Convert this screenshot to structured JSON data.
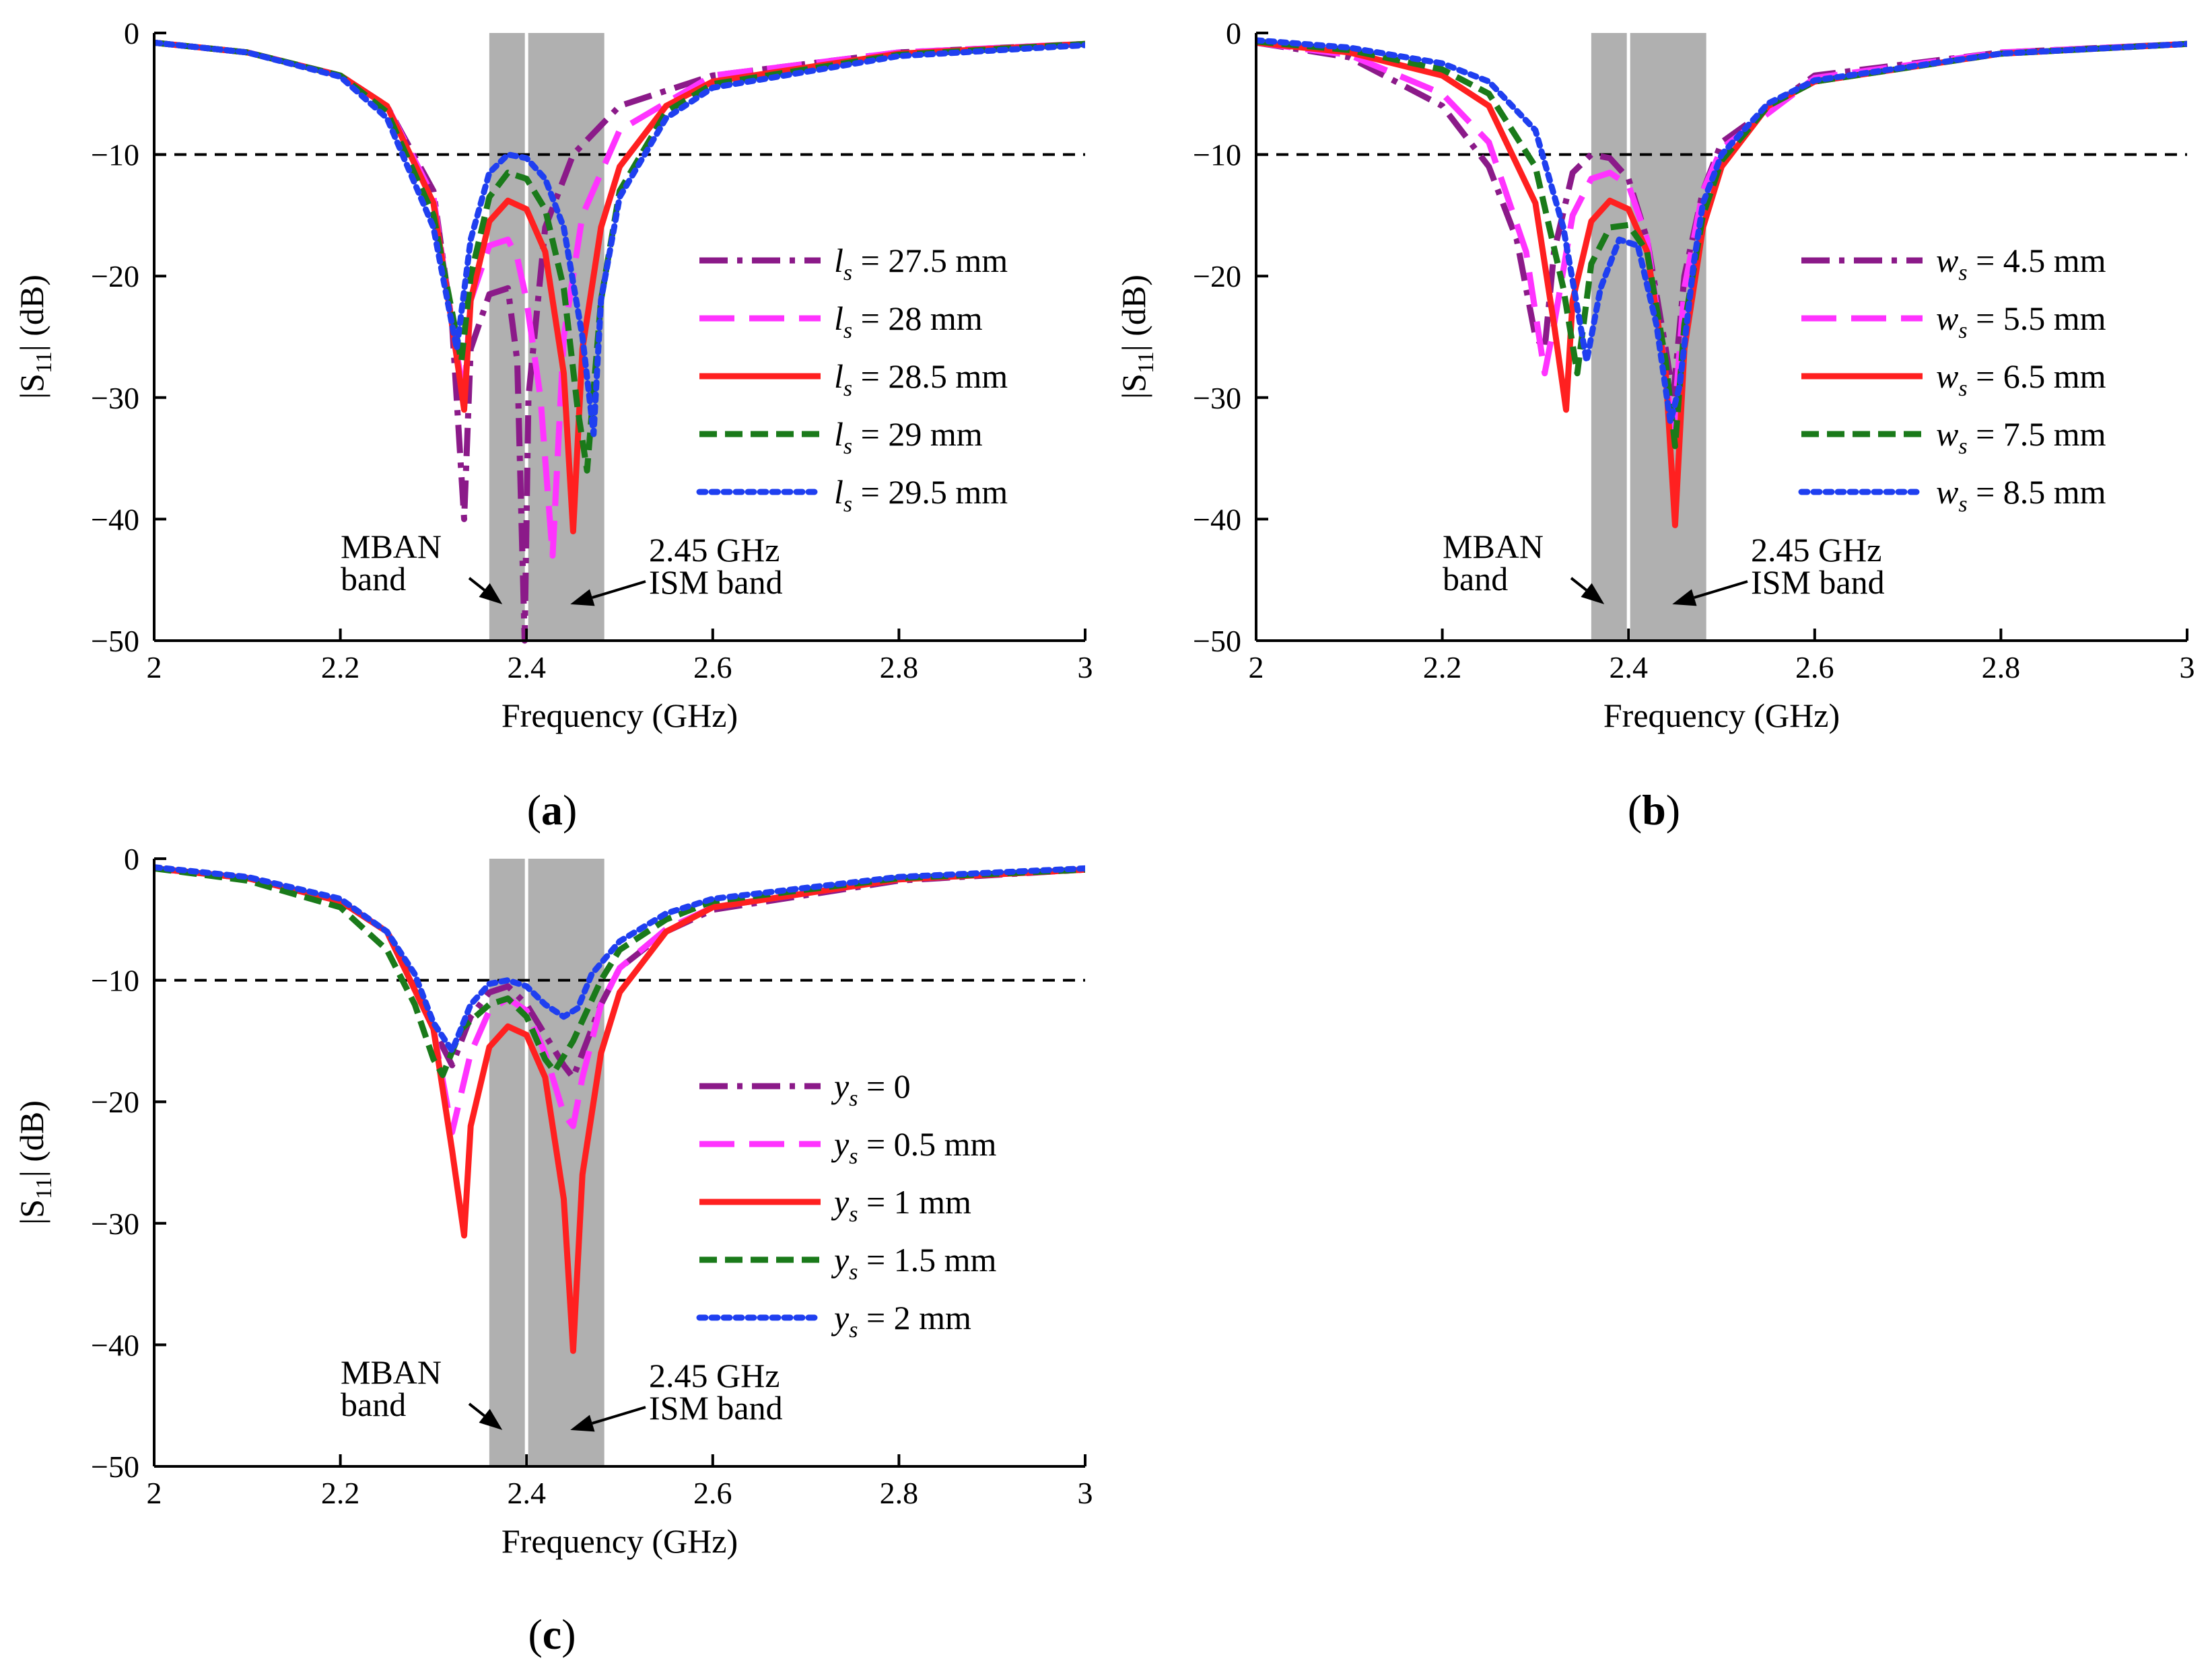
{
  "figure": {
    "panel_tag_left": "(",
    "panel_tag_right": ")",
    "colors": {
      "band_fill": "#b0b0b0",
      "band_divider": "#ffffff",
      "threshold_line": "#000000",
      "axis": "#000000",
      "series": [
        "#8b1a89",
        "#ff33ff",
        "#ff2020",
        "#1a7a1a",
        "#1f3ff0"
      ]
    },
    "line_styles": [
      "dashdot",
      "dashed",
      "solid",
      "shortdash",
      "dotted"
    ]
  },
  "chart_data": [
    {
      "type": "line",
      "panel": "a",
      "xlabel": "Frequency (GHz)",
      "ylabel_main": "|S",
      "ylabel_sub": "11",
      "ylabel_tail": "| (dB)",
      "xlim": [
        2,
        3
      ],
      "ylim": [
        -50,
        0
      ],
      "xticks": [
        2,
        2.2,
        2.4,
        2.6,
        2.8,
        3
      ],
      "xtick_labels": [
        "2",
        "2.2",
        "2.4",
        "2.6",
        "2.8",
        "3"
      ],
      "yticks": [
        0,
        -10,
        -20,
        -30,
        -40,
        -50
      ],
      "ytick_labels": [
        "0",
        "−10",
        "−20",
        "−30",
        "−40",
        "−50"
      ],
      "threshold_db": -10,
      "bands": [
        {
          "name": "MBAN",
          "from": 2.36,
          "to": 2.4
        },
        {
          "name": "ISM",
          "from": 2.4,
          "to": 2.4835
        }
      ],
      "annotations": [
        {
          "id": "mban",
          "lines": [
            "MBAN",
            "band"
          ],
          "arrow_to": [
            2.374,
            -47.0
          ]
        },
        {
          "id": "ism",
          "lines": [
            "2.45 GHz",
            "ISM band"
          ],
          "arrow_to": [
            2.447,
            -47.0
          ]
        }
      ],
      "legend_var": "l",
      "legend_sub": "s",
      "series": [
        {
          "name": "ls = 27.5 mm",
          "value_text": " = 27.5 mm",
          "x": [
            2.0,
            2.1,
            2.2,
            2.25,
            2.3,
            2.32,
            2.333,
            2.34,
            2.36,
            2.38,
            2.39,
            2.398,
            2.402,
            2.42,
            2.45,
            2.5,
            2.6,
            2.8,
            3.0
          ],
          "y": [
            -0.8,
            -1.6,
            -3.5,
            -6.0,
            -13.0,
            -24.0,
            -40.0,
            -26.0,
            -21.5,
            -21.0,
            -27.0,
            -50.0,
            -30.0,
            -16.0,
            -10.0,
            -6.0,
            -3.5,
            -1.6,
            -0.9
          ]
        },
        {
          "name": "ls = 28 mm",
          "value_text": " = 28 mm",
          "x": [
            2.0,
            2.1,
            2.2,
            2.25,
            2.3,
            2.32,
            2.333,
            2.34,
            2.36,
            2.38,
            2.39,
            2.4,
            2.415,
            2.428,
            2.44,
            2.46,
            2.5,
            2.6,
            2.8,
            3.0
          ],
          "y": [
            -0.8,
            -1.6,
            -3.5,
            -6.0,
            -13.5,
            -24.0,
            -30.0,
            -22.0,
            -17.5,
            -17.0,
            -18.5,
            -22.0,
            -30.0,
            -43.0,
            -25.0,
            -15.0,
            -8.0,
            -3.5,
            -1.6,
            -0.9
          ]
        },
        {
          "name": "ls = 28.5 mm",
          "value_text": " = 28.5 mm",
          "x": [
            2.0,
            2.1,
            2.2,
            2.25,
            2.3,
            2.32,
            2.333,
            2.34,
            2.36,
            2.38,
            2.4,
            2.42,
            2.44,
            2.45,
            2.46,
            2.48,
            2.5,
            2.55,
            2.6,
            2.8,
            3.0
          ],
          "y": [
            -0.8,
            -1.6,
            -3.5,
            -6.0,
            -14.0,
            -24.0,
            -31.0,
            -22.0,
            -15.5,
            -13.8,
            -14.5,
            -18.0,
            -28.0,
            -41.0,
            -26.0,
            -16.0,
            -11.0,
            -6.0,
            -4.0,
            -1.7,
            -0.9
          ]
        },
        {
          "name": "ls = 29 mm",
          "value_text": " = 29 mm",
          "x": [
            2.0,
            2.1,
            2.2,
            2.25,
            2.3,
            2.32,
            2.33,
            2.34,
            2.36,
            2.38,
            2.4,
            2.42,
            2.44,
            2.455,
            2.465,
            2.48,
            2.5,
            2.55,
            2.6,
            2.8,
            3.0
          ],
          "y": [
            -0.8,
            -1.6,
            -3.5,
            -6.5,
            -15.0,
            -23.0,
            -27.0,
            -20.0,
            -13.5,
            -11.5,
            -12.0,
            -14.5,
            -21.0,
            -31.0,
            -36.0,
            -22.0,
            -13.0,
            -6.5,
            -4.2,
            -1.8,
            -0.9
          ]
        },
        {
          "name": "ls = 29.5 mm",
          "value_text": " = 29.5 mm",
          "x": [
            2.0,
            2.1,
            2.2,
            2.25,
            2.3,
            2.315,
            2.325,
            2.34,
            2.36,
            2.38,
            2.4,
            2.42,
            2.44,
            2.46,
            2.472,
            2.48,
            2.5,
            2.55,
            2.6,
            2.8,
            3.0
          ],
          "y": [
            -0.8,
            -1.6,
            -3.6,
            -7.0,
            -16.0,
            -22.0,
            -26.0,
            -17.0,
            -11.5,
            -10.0,
            -10.3,
            -12.0,
            -16.0,
            -25.0,
            -33.0,
            -22.0,
            -13.5,
            -7.0,
            -4.5,
            -1.9,
            -1.0
          ]
        }
      ]
    },
    {
      "type": "line",
      "panel": "b",
      "xlabel": "Frequency (GHz)",
      "ylabel_main": "|S",
      "ylabel_sub": "11",
      "ylabel_tail": "| (dB)",
      "xlim": [
        2,
        3
      ],
      "ylim": [
        -50,
        0
      ],
      "xticks": [
        2,
        2.2,
        2.4,
        2.6,
        2.8,
        3
      ],
      "xtick_labels": [
        "2",
        "2.2",
        "2.4",
        "2.6",
        "2.8",
        "3"
      ],
      "yticks": [
        0,
        -10,
        -20,
        -30,
        -40,
        -50
      ],
      "ytick_labels": [
        "0",
        "−10",
        "−20",
        "−30",
        "−40",
        "−50"
      ],
      "threshold_db": -10,
      "bands": [
        {
          "name": "MBAN",
          "from": 2.36,
          "to": 2.4
        },
        {
          "name": "ISM",
          "from": 2.4,
          "to": 2.4835
        }
      ],
      "annotations": [
        {
          "id": "mban",
          "lines": [
            "MBAN",
            "band"
          ],
          "arrow_to": [
            2.374,
            -47.0
          ]
        },
        {
          "id": "ism",
          "lines": [
            "2.45 GHz",
            "ISM band"
          ],
          "arrow_to": [
            2.447,
            -47.0
          ]
        }
      ],
      "legend_var": "w",
      "legend_sub": "s",
      "series": [
        {
          "name": "ws = 4.5 mm",
          "value_text": " = 4.5 mm",
          "x": [
            2.0,
            2.1,
            2.2,
            2.25,
            2.28,
            2.3,
            2.31,
            2.32,
            2.34,
            2.36,
            2.38,
            2.4,
            2.42,
            2.44,
            2.448,
            2.46,
            2.48,
            2.5,
            2.6,
            2.8,
            3.0
          ],
          "y": [
            -0.8,
            -2.0,
            -6.0,
            -11.0,
            -17.0,
            -25.0,
            -26.0,
            -18.0,
            -11.5,
            -10.0,
            -10.3,
            -12.0,
            -17.0,
            -26.0,
            -30.0,
            -20.0,
            -13.0,
            -9.0,
            -3.5,
            -1.6,
            -0.9
          ]
        },
        {
          "name": "ws = 5.5 mm",
          "value_text": " = 5.5 mm",
          "x": [
            2.0,
            2.1,
            2.2,
            2.25,
            2.29,
            2.31,
            2.32,
            2.34,
            2.36,
            2.38,
            2.4,
            2.42,
            2.44,
            2.448,
            2.46,
            2.48,
            2.5,
            2.6,
            2.8,
            3.0
          ],
          "y": [
            -0.8,
            -1.8,
            -5.0,
            -9.0,
            -18.0,
            -28.0,
            -24.0,
            -15.0,
            -12.0,
            -11.5,
            -12.5,
            -17.0,
            -28.0,
            -33.0,
            -21.0,
            -13.0,
            -9.5,
            -3.7,
            -1.6,
            -0.9
          ]
        },
        {
          "name": "ws = 6.5 mm",
          "value_text": " = 6.5 mm",
          "x": [
            2.0,
            2.1,
            2.2,
            2.25,
            2.3,
            2.32,
            2.333,
            2.34,
            2.36,
            2.38,
            2.4,
            2.42,
            2.44,
            2.45,
            2.46,
            2.48,
            2.5,
            2.55,
            2.6,
            2.8,
            3.0
          ],
          "y": [
            -0.8,
            -1.6,
            -3.5,
            -6.0,
            -14.0,
            -24.0,
            -31.0,
            -22.0,
            -15.5,
            -13.8,
            -14.5,
            -18.0,
            -28.0,
            -40.5,
            -26.0,
            -16.0,
            -11.0,
            -6.0,
            -4.0,
            -1.7,
            -0.9
          ]
        },
        {
          "name": "ws = 7.5 mm",
          "value_text": " = 7.5 mm",
          "x": [
            2.0,
            2.1,
            2.2,
            2.25,
            2.3,
            2.33,
            2.345,
            2.36,
            2.38,
            2.4,
            2.42,
            2.44,
            2.45,
            2.46,
            2.48,
            2.5,
            2.55,
            2.6,
            2.8,
            3.0
          ],
          "y": [
            -0.7,
            -1.4,
            -3.0,
            -5.0,
            -11.0,
            -21.0,
            -28.0,
            -19.0,
            -16.0,
            -15.8,
            -18.0,
            -27.0,
            -34.0,
            -24.0,
            -15.0,
            -10.5,
            -6.0,
            -4.0,
            -1.7,
            -0.9
          ]
        },
        {
          "name": "ws = 8.5 mm",
          "value_text": " = 8.5 mm",
          "x": [
            2.0,
            2.1,
            2.2,
            2.25,
            2.3,
            2.33,
            2.355,
            2.37,
            2.39,
            2.41,
            2.43,
            2.445,
            2.455,
            2.47,
            2.48,
            2.5,
            2.55,
            2.6,
            2.8,
            3.0
          ],
          "y": [
            -0.6,
            -1.2,
            -2.5,
            -4.0,
            -8.0,
            -16.0,
            -27.0,
            -21.0,
            -17.0,
            -17.5,
            -24.0,
            -32.0,
            -29.0,
            -19.0,
            -14.0,
            -10.0,
            -5.8,
            -3.9,
            -1.7,
            -0.9
          ]
        }
      ]
    },
    {
      "type": "line",
      "panel": "c",
      "xlabel": "Frequency (GHz)",
      "ylabel_main": "|S",
      "ylabel_sub": "11",
      "ylabel_tail": "| (dB)",
      "xlim": [
        2,
        3
      ],
      "ylim": [
        -50,
        0
      ],
      "xticks": [
        2,
        2.2,
        2.4,
        2.6,
        2.8,
        3
      ],
      "xtick_labels": [
        "2",
        "2.2",
        "2.4",
        "2.6",
        "2.8",
        "3"
      ],
      "yticks": [
        0,
        -10,
        -20,
        -30,
        -40,
        -50
      ],
      "ytick_labels": [
        "0",
        "−10",
        "−20",
        "−30",
        "−40",
        "−50"
      ],
      "threshold_db": -10,
      "bands": [
        {
          "name": "MBAN",
          "from": 2.36,
          "to": 2.4
        },
        {
          "name": "ISM",
          "from": 2.4,
          "to": 2.4835
        }
      ],
      "annotations": [
        {
          "id": "mban",
          "lines": [
            "MBAN",
            "band"
          ],
          "arrow_to": [
            2.374,
            -47.0
          ]
        },
        {
          "id": "ism",
          "lines": [
            "2.45 GHz",
            "ISM band"
          ],
          "arrow_to": [
            2.447,
            -47.0
          ]
        }
      ],
      "legend_var": "y",
      "legend_sub": "s",
      "series": [
        {
          "name": "ys = 0",
          "value_text": " = 0",
          "x": [
            2.0,
            2.1,
            2.2,
            2.25,
            2.28,
            2.3,
            2.32,
            2.34,
            2.36,
            2.38,
            2.4,
            2.42,
            2.44,
            2.45,
            2.46,
            2.48,
            2.5,
            2.55,
            2.6,
            2.8,
            3.0
          ],
          "y": [
            -0.8,
            -1.6,
            -3.5,
            -6.0,
            -10.0,
            -14.0,
            -17.0,
            -13.0,
            -11.0,
            -10.5,
            -12.0,
            -14.5,
            -17.0,
            -18.0,
            -16.0,
            -12.0,
            -9.0,
            -6.0,
            -4.2,
            -1.8,
            -0.9
          ]
        },
        {
          "name": "ys = 0.5 mm",
          "value_text": " = 0.5 mm",
          "x": [
            2.0,
            2.1,
            2.2,
            2.25,
            2.3,
            2.32,
            2.34,
            2.36,
            2.38,
            2.4,
            2.42,
            2.44,
            2.45,
            2.46,
            2.48,
            2.5,
            2.55,
            2.6,
            2.8,
            3.0
          ],
          "y": [
            -0.8,
            -1.6,
            -3.5,
            -6.0,
            -14.0,
            -22.5,
            -16.0,
            -12.5,
            -11.5,
            -12.5,
            -16.0,
            -21.0,
            -22.0,
            -18.0,
            -12.0,
            -9.0,
            -5.8,
            -4.0,
            -1.7,
            -0.9
          ]
        },
        {
          "name": "ys = 1 mm",
          "value_text": " = 1 mm",
          "x": [
            2.0,
            2.1,
            2.2,
            2.25,
            2.3,
            2.32,
            2.333,
            2.34,
            2.36,
            2.38,
            2.4,
            2.42,
            2.44,
            2.45,
            2.46,
            2.48,
            2.5,
            2.55,
            2.6,
            2.8,
            3.0
          ],
          "y": [
            -0.8,
            -1.6,
            -3.5,
            -6.0,
            -14.0,
            -24.0,
            -31.0,
            -22.0,
            -15.5,
            -13.8,
            -14.5,
            -18.0,
            -28.0,
            -40.5,
            -26.0,
            -16.0,
            -11.0,
            -6.0,
            -4.0,
            -1.7,
            -0.9
          ]
        },
        {
          "name": "ys = 1.5 mm",
          "value_text": " = 1.5 mm",
          "x": [
            2.0,
            2.1,
            2.2,
            2.25,
            2.28,
            2.3,
            2.31,
            2.33,
            2.36,
            2.38,
            2.4,
            2.42,
            2.43,
            2.45,
            2.48,
            2.5,
            2.55,
            2.6,
            2.8,
            3.0
          ],
          "y": [
            -0.8,
            -1.8,
            -4.0,
            -7.5,
            -12.0,
            -16.5,
            -17.8,
            -14.0,
            -12.0,
            -11.5,
            -13.0,
            -16.5,
            -17.5,
            -15.0,
            -10.0,
            -7.5,
            -5.0,
            -3.5,
            -1.6,
            -0.9
          ]
        },
        {
          "name": "ys = 2 mm",
          "value_text": " = 2 mm",
          "x": [
            2.0,
            2.1,
            2.2,
            2.25,
            2.28,
            2.3,
            2.32,
            2.34,
            2.36,
            2.38,
            2.4,
            2.42,
            2.44,
            2.455,
            2.47,
            2.5,
            2.55,
            2.6,
            2.8,
            3.0
          ],
          "y": [
            -0.7,
            -1.5,
            -3.3,
            -6.0,
            -9.5,
            -13.5,
            -15.8,
            -12.0,
            -10.3,
            -10.0,
            -10.5,
            -12.0,
            -13.0,
            -12.3,
            -9.5,
            -6.8,
            -4.5,
            -3.3,
            -1.5,
            -0.8
          ]
        }
      ]
    }
  ]
}
